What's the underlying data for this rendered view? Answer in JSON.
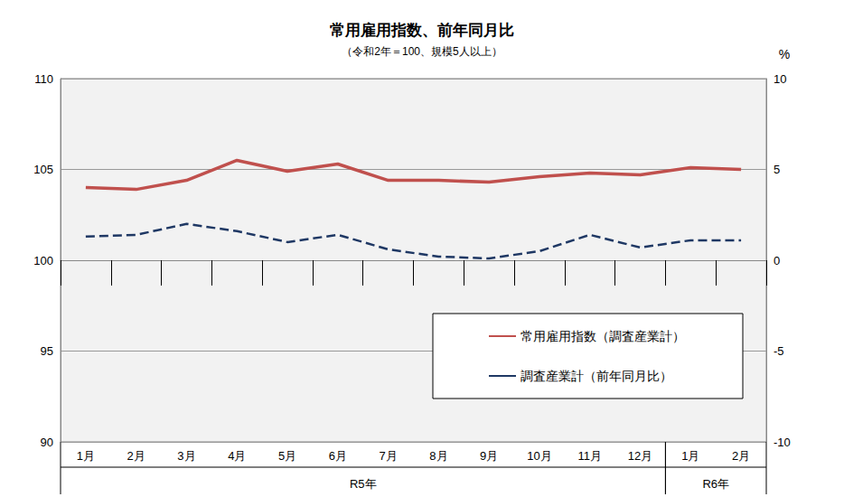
{
  "chart_data": {
    "type": "line",
    "title": "常用雇用指数、前年同月比",
    "subtitle": "（令和2年＝100、規模5人以上）",
    "y2_label": "%",
    "categories": [
      "1月",
      "2月",
      "3月",
      "4月",
      "5月",
      "6月",
      "7月",
      "8月",
      "9月",
      "10月",
      "11月",
      "12月",
      "1月",
      "2月"
    ],
    "category_groups": [
      {
        "label": "R5年",
        "count": 12
      },
      {
        "label": "R6年",
        "count": 2
      }
    ],
    "series": [
      {
        "name": "常用雇用指数（調査産業計）",
        "color": "#c0504d",
        "line_style": "solid",
        "marker": "none",
        "values": [
          104.0,
          103.9,
          104.4,
          105.5,
          104.9,
          105.3,
          104.4,
          104.4,
          104.3,
          104.6,
          104.8,
          104.7,
          105.1,
          105.0
        ]
      },
      {
        "name": "調査産業計（前年同月比）",
        "color": "#1f3864",
        "line_style": "dashed",
        "marker": "none",
        "axis": "y2",
        "values": [
          1.3,
          1.4,
          2.0,
          1.6,
          1.0,
          1.4,
          0.6,
          0.2,
          0.1,
          0.5,
          1.4,
          0.7,
          1.1,
          1.1
        ]
      }
    ],
    "ylim": [
      90,
      110
    ],
    "yticks": [
      90,
      95,
      100,
      105,
      110
    ],
    "y2lim": [
      -10,
      10
    ],
    "y2ticks": [
      -10,
      -5,
      0,
      5,
      10
    ],
    "grid": true,
    "legend": "lower right"
  }
}
